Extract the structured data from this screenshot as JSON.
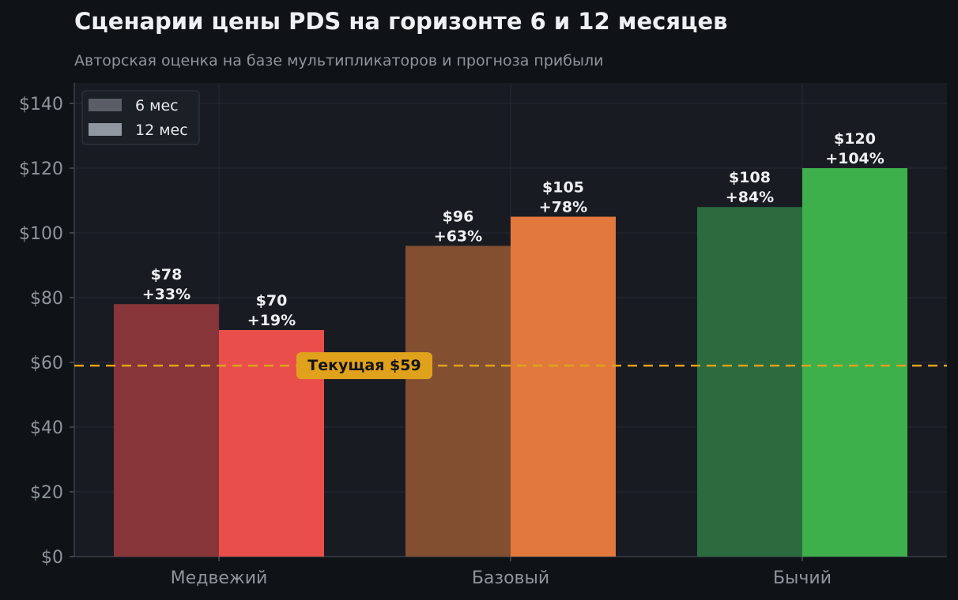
{
  "title": "Сценарии цены PDS на горизонте 6 и 12 месяцев",
  "subtitle": "Авторская оценка на базе мультипликаторов и прогноза прибыли",
  "colors": {
    "background": "#0f1317",
    "plot_background": "#181b22",
    "grid": "#262a33",
    "axis_text": "#8f959d",
    "reference_line": "#e0a21c",
    "legend_6m": "#5a5d66",
    "legend_12m": "#9097a0"
  },
  "chart_data": {
    "type": "bar",
    "title": "Сценарии цены PDS на горизонте 6 и 12 месяцев",
    "subtitle": "Авторская оценка на базе мультипликаторов и прогноза прибыли",
    "categories": [
      "Медвежий",
      "Базовый",
      "Бычий"
    ],
    "series": [
      {
        "name": "6 мес",
        "values": [
          78,
          96,
          108
        ],
        "labels": [
          "$78",
          "$96",
          "$108"
        ],
        "changes": [
          "+33%",
          "+63%",
          "+84%"
        ],
        "colors": [
          "#873538",
          "#824f30",
          "#2c6b3d"
        ]
      },
      {
        "name": "12 мес",
        "values": [
          70,
          105,
          120
        ],
        "labels": [
          "$70",
          "$105",
          "$120"
        ],
        "changes": [
          "+19%",
          "+78%",
          "+104%"
        ],
        "colors": [
          "#e94e4a",
          "#e2783b",
          "#3db04c"
        ]
      }
    ],
    "reference_line": {
      "value": 59,
      "label": "Текущая $59"
    },
    "ylim": [
      0,
      146
    ],
    "yticks": [
      0,
      20,
      40,
      60,
      80,
      100,
      120,
      140
    ],
    "ytick_labels": [
      "$0",
      "$20",
      "$40",
      "$60",
      "$80",
      "$100",
      "$120",
      "$140"
    ],
    "xlabel": "",
    "ylabel": "",
    "grid": true,
    "legend_position": "top-left"
  }
}
